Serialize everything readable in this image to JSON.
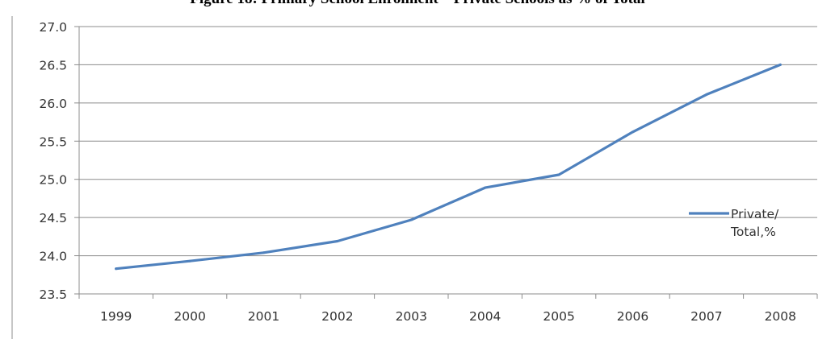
{
  "chart_data": {
    "type": "line",
    "title": "Figure 18: Primary School Enrolment – Private Schools as % of Total",
    "xlabel": "",
    "ylabel": "",
    "categories": [
      "1999",
      "2000",
      "2001",
      "2002",
      "2003",
      "2004",
      "2005",
      "2006",
      "2007",
      "2008"
    ],
    "series": [
      {
        "name": "Private/ Total,%",
        "values": [
          23.83,
          23.93,
          24.04,
          24.19,
          24.47,
          24.89,
          25.06,
          25.62,
          26.11,
          26.5
        ],
        "color": "#4f81bd"
      }
    ],
    "ylim": [
      23.5,
      27.0
    ],
    "yticks": [
      "23.5",
      "24.0",
      "24.5",
      "25.0",
      "25.5",
      "26.0",
      "26.5",
      "27.0"
    ],
    "grid": true,
    "legend_position": "right"
  }
}
